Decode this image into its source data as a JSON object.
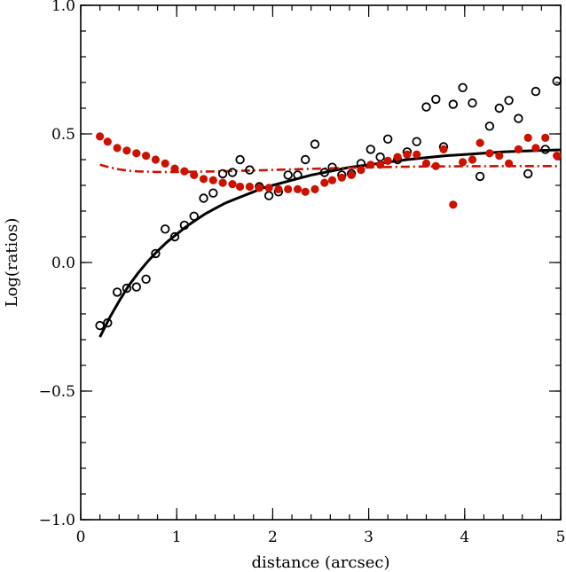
{
  "chart_data": {
    "type": "scatter",
    "title": "",
    "xlabel": "distance (arcsec)",
    "ylabel": "Log(ratios)",
    "xlim": [
      0,
      5
    ],
    "ylim": [
      -1.0,
      1.0
    ],
    "x_ticks": [
      0,
      1,
      2,
      3,
      4,
      5
    ],
    "x_tick_labels": [
      "0",
      "1",
      "2",
      "3",
      "4",
      "5"
    ],
    "y_ticks": [
      -1.0,
      -0.5,
      0.0,
      0.5,
      1.0
    ],
    "y_tick_labels": [
      "−1.0",
      "−0.5",
      "0.0",
      "0.5",
      "1.0"
    ],
    "grid": false,
    "series": [
      {
        "marker": "open-circle",
        "color": "#000000",
        "points": [
          [
            0.2,
            -0.245
          ],
          [
            0.28,
            -0.235
          ],
          [
            0.38,
            -0.115
          ],
          [
            0.48,
            -0.1
          ],
          [
            0.58,
            -0.095
          ],
          [
            0.68,
            -0.065
          ],
          [
            0.78,
            0.035
          ],
          [
            0.88,
            0.13
          ],
          [
            0.98,
            0.1
          ],
          [
            1.08,
            0.145
          ],
          [
            1.18,
            0.18
          ],
          [
            1.28,
            0.25
          ],
          [
            1.38,
            0.27
          ],
          [
            1.48,
            0.345
          ],
          [
            1.58,
            0.35
          ],
          [
            1.66,
            0.4
          ],
          [
            1.76,
            0.36
          ],
          [
            1.86,
            0.295
          ],
          [
            1.96,
            0.26
          ],
          [
            2.06,
            0.275
          ],
          [
            2.16,
            0.34
          ],
          [
            2.26,
            0.34
          ],
          [
            2.34,
            0.4
          ],
          [
            2.44,
            0.46
          ],
          [
            2.54,
            0.35
          ],
          [
            2.62,
            0.37
          ],
          [
            2.72,
            0.34
          ],
          [
            2.82,
            0.345
          ],
          [
            2.92,
            0.385
          ],
          [
            3.02,
            0.44
          ],
          [
            3.12,
            0.41
          ],
          [
            3.2,
            0.48
          ],
          [
            3.3,
            0.4
          ],
          [
            3.4,
            0.43
          ],
          [
            3.5,
            0.47
          ],
          [
            3.6,
            0.605
          ],
          [
            3.7,
            0.635
          ],
          [
            3.78,
            0.45
          ],
          [
            3.88,
            0.615
          ],
          [
            3.98,
            0.68
          ],
          [
            4.08,
            0.62
          ],
          [
            4.16,
            0.335
          ],
          [
            4.26,
            0.53
          ],
          [
            4.36,
            0.6
          ],
          [
            4.46,
            0.63
          ],
          [
            4.56,
            0.56
          ],
          [
            4.66,
            0.345
          ],
          [
            4.74,
            0.665
          ],
          [
            4.84,
            0.44
          ],
          [
            4.96,
            0.705
          ]
        ]
      },
      {
        "marker": "filled-circle",
        "color": "#cc1100",
        "points": [
          [
            0.2,
            0.49
          ],
          [
            0.28,
            0.47
          ],
          [
            0.38,
            0.445
          ],
          [
            0.48,
            0.435
          ],
          [
            0.58,
            0.425
          ],
          [
            0.68,
            0.415
          ],
          [
            0.78,
            0.4
          ],
          [
            0.88,
            0.385
          ],
          [
            0.98,
            0.365
          ],
          [
            1.08,
            0.355
          ],
          [
            1.18,
            0.34
          ],
          [
            1.28,
            0.325
          ],
          [
            1.38,
            0.32
          ],
          [
            1.48,
            0.31
          ],
          [
            1.58,
            0.305
          ],
          [
            1.66,
            0.295
          ],
          [
            1.76,
            0.295
          ],
          [
            1.86,
            0.29
          ],
          [
            1.96,
            0.29
          ],
          [
            2.06,
            0.285
          ],
          [
            2.16,
            0.285
          ],
          [
            2.26,
            0.285
          ],
          [
            2.34,
            0.275
          ],
          [
            2.44,
            0.285
          ],
          [
            2.54,
            0.31
          ],
          [
            2.62,
            0.32
          ],
          [
            2.72,
            0.33
          ],
          [
            2.82,
            0.34
          ],
          [
            2.92,
            0.36
          ],
          [
            3.02,
            0.38
          ],
          [
            3.12,
            0.38
          ],
          [
            3.2,
            0.395
          ],
          [
            3.3,
            0.41
          ],
          [
            3.4,
            0.42
          ],
          [
            3.5,
            0.42
          ],
          [
            3.6,
            0.385
          ],
          [
            3.7,
            0.375
          ],
          [
            3.78,
            0.44
          ],
          [
            3.88,
            0.225
          ],
          [
            3.98,
            0.39
          ],
          [
            4.08,
            0.4
          ],
          [
            4.16,
            0.465
          ],
          [
            4.26,
            0.425
          ],
          [
            4.36,
            0.415
          ],
          [
            4.46,
            0.385
          ],
          [
            4.56,
            0.44
          ],
          [
            4.66,
            0.485
          ],
          [
            4.74,
            0.445
          ],
          [
            4.84,
            0.485
          ],
          [
            4.96,
            0.415
          ]
        ]
      },
      {
        "type": "line",
        "style": "solid",
        "color": "#000000",
        "points": [
          [
            0.2,
            -0.29
          ],
          [
            0.3,
            -0.215
          ],
          [
            0.4,
            -0.15
          ],
          [
            0.5,
            -0.09
          ],
          [
            0.6,
            -0.04
          ],
          [
            0.7,
            0.005
          ],
          [
            0.8,
            0.045
          ],
          [
            0.9,
            0.08
          ],
          [
            1.0,
            0.11
          ],
          [
            1.1,
            0.14
          ],
          [
            1.2,
            0.165
          ],
          [
            1.3,
            0.19
          ],
          [
            1.4,
            0.21
          ],
          [
            1.5,
            0.23
          ],
          [
            1.6,
            0.245
          ],
          [
            1.7,
            0.26
          ],
          [
            1.8,
            0.275
          ],
          [
            1.9,
            0.29
          ],
          [
            2.0,
            0.3
          ],
          [
            2.2,
            0.32
          ],
          [
            2.4,
            0.34
          ],
          [
            2.6,
            0.355
          ],
          [
            2.8,
            0.37
          ],
          [
            3.0,
            0.38
          ],
          [
            3.2,
            0.39
          ],
          [
            3.4,
            0.4
          ],
          [
            3.6,
            0.408
          ],
          [
            3.8,
            0.415
          ],
          [
            4.0,
            0.42
          ],
          [
            4.2,
            0.425
          ],
          [
            4.4,
            0.43
          ],
          [
            4.6,
            0.433
          ],
          [
            4.8,
            0.436
          ],
          [
            5.0,
            0.438
          ]
        ]
      },
      {
        "type": "line",
        "style": "dash-dot",
        "color": "#cc1100",
        "points": [
          [
            0.2,
            0.38
          ],
          [
            0.3,
            0.37
          ],
          [
            0.4,
            0.362
          ],
          [
            0.5,
            0.357
          ],
          [
            0.6,
            0.354
          ],
          [
            0.8,
            0.352
          ],
          [
            1.0,
            0.352
          ],
          [
            1.2,
            0.353
          ],
          [
            1.5,
            0.355
          ],
          [
            2.0,
            0.36
          ],
          [
            2.5,
            0.365
          ],
          [
            3.0,
            0.37
          ],
          [
            3.5,
            0.373
          ],
          [
            4.0,
            0.374
          ],
          [
            4.5,
            0.375
          ],
          [
            5.0,
            0.375
          ]
        ]
      }
    ]
  }
}
